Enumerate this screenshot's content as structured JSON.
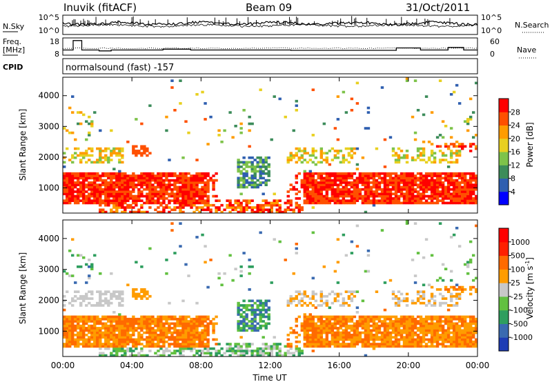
{
  "header": {
    "station": "Inuvik (fitACF)",
    "beam": "Beam 09",
    "date": "31/Oct/2011"
  },
  "noise_panel": {
    "left_label": "N.Sky",
    "right_label": "N.Search",
    "right_legend_style": "dotted",
    "left_ticks": [
      "10^5",
      "10^0"
    ],
    "right_ticks": [
      "10^5",
      "10^0"
    ]
  },
  "freq_panel": {
    "left_label_line1": "Freq.",
    "left_label_line2": "[MHz]",
    "left_ticks": [
      "18",
      "8"
    ],
    "right_label": "Nave",
    "right_legend_style": "dotted",
    "right_ticks": [
      "60",
      "0"
    ]
  },
  "cpid_panel": {
    "label": "CPID",
    "program": "normalsound (fast) -157"
  },
  "x_axis": {
    "label": "Time UT",
    "ticks": [
      "00:00",
      "04:00",
      "08:00",
      "12:00",
      "16:00",
      "20:00",
      "00:00"
    ]
  },
  "chart_data": [
    {
      "type": "heatmap",
      "name": "power",
      "ylabel": "Slant Range [km]",
      "yticks": [
        "1000",
        "2000",
        "3000",
        "4000"
      ],
      "ylim": [
        180,
        4600
      ],
      "xlim_hours": [
        0,
        24
      ],
      "colorbar_label": "Power [dB]",
      "colorbar_ticks": [
        "4",
        "8",
        "12",
        "16",
        "20",
        "24",
        "28"
      ],
      "colorbar_colors": [
        "#0000ff",
        "#2f5fb0",
        "#3c8c5a",
        "#7ec34a",
        "#e8d020",
        "#ff9c00",
        "#ff5000",
        "#ff0000"
      ],
      "missing_color": "#ffffff"
    },
    {
      "type": "heatmap",
      "name": "velocity",
      "ylabel": "Slant Range [km]",
      "yticks": [
        "1000",
        "2000",
        "3000",
        "4000"
      ],
      "ylim": [
        180,
        4600
      ],
      "xlim_hours": [
        0,
        24
      ],
      "colorbar_label": "Velocity [m s",
      "colorbar_label_sup": "-1",
      "colorbar_label_tail": "]",
      "colorbar_ticks": [
        "1000",
        "500",
        "100",
        "25",
        "-25",
        "-100",
        "-500",
        "-1000"
      ],
      "colorbar_colors": [
        "#1e3cb4",
        "#3a6ab0",
        "#2e9e5e",
        "#62c040",
        "#c8c8c8",
        "#ff9c00",
        "#ff6a00",
        "#ff2000",
        "#ff0000"
      ],
      "missing_color": "#ffffff"
    }
  ]
}
